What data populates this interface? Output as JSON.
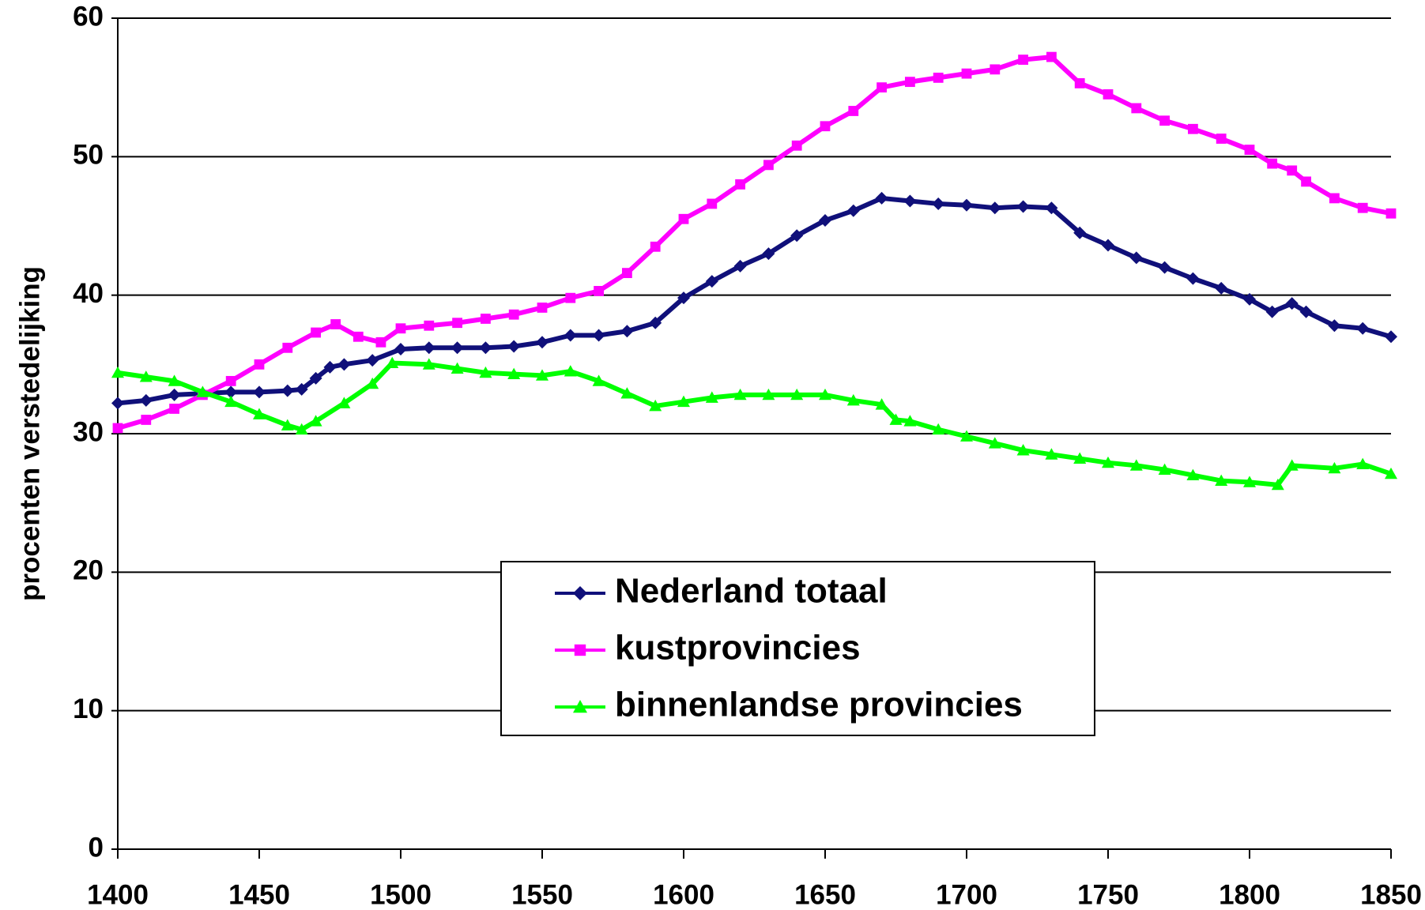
{
  "chart_data": {
    "type": "line",
    "y_label": "procenten verstedelijking",
    "xlim": [
      1400,
      1850
    ],
    "xticks": [
      1400,
      1450,
      1500,
      1550,
      1600,
      1650,
      1700,
      1750,
      1800,
      1850
    ],
    "ylim": [
      0,
      60
    ],
    "yticks": [
      0,
      10,
      20,
      30,
      40,
      50,
      60
    ],
    "grid": true,
    "series": [
      {
        "name": "Nederland totaal",
        "color": "#10107a",
        "marker": "diamond",
        "x": [
          1400,
          1410,
          1420,
          1430,
          1440,
          1450,
          1460,
          1465,
          1470,
          1475,
          1480,
          1490,
          1500,
          1510,
          1520,
          1530,
          1540,
          1550,
          1560,
          1570,
          1580,
          1590,
          1600,
          1610,
          1620,
          1630,
          1640,
          1650,
          1660,
          1670,
          1680,
          1690,
          1700,
          1710,
          1720,
          1730,
          1740,
          1750,
          1760,
          1770,
          1780,
          1790,
          1800,
          1808,
          1815,
          1820,
          1830,
          1840,
          1850
        ],
        "values": [
          32.2,
          32.4,
          32.8,
          32.9,
          33.0,
          33.0,
          33.1,
          33.2,
          34.0,
          34.8,
          35.0,
          35.3,
          36.1,
          36.2,
          36.2,
          36.2,
          36.3,
          36.6,
          37.1,
          37.1,
          37.4,
          38.0,
          39.8,
          41.0,
          42.1,
          43.0,
          44.3,
          45.4,
          46.1,
          47.0,
          46.8,
          46.6,
          46.5,
          46.3,
          46.4,
          46.3,
          44.5,
          43.6,
          42.7,
          42.0,
          41.2,
          40.5,
          39.7,
          38.8,
          39.4,
          38.8,
          37.8,
          37.6,
          37.0
        ]
      },
      {
        "name": "kustprovincies",
        "color": "#ff00ff",
        "marker": "square",
        "x": [
          1400,
          1410,
          1420,
          1430,
          1440,
          1450,
          1460,
          1470,
          1477,
          1485,
          1493,
          1500,
          1510,
          1520,
          1530,
          1540,
          1550,
          1560,
          1570,
          1580,
          1590,
          1600,
          1610,
          1620,
          1630,
          1640,
          1650,
          1660,
          1670,
          1680,
          1690,
          1700,
          1710,
          1720,
          1730,
          1740,
          1750,
          1760,
          1770,
          1780,
          1790,
          1800,
          1808,
          1815,
          1820,
          1830,
          1840,
          1850
        ],
        "values": [
          30.4,
          31.0,
          31.8,
          32.8,
          33.8,
          35.0,
          36.2,
          37.3,
          37.9,
          37.0,
          36.6,
          37.6,
          37.8,
          38.0,
          38.3,
          38.6,
          39.1,
          39.8,
          40.3,
          41.6,
          43.5,
          45.5,
          46.6,
          48.0,
          49.4,
          50.8,
          52.2,
          53.3,
          55.0,
          55.4,
          55.7,
          56.0,
          56.3,
          57.0,
          57.2,
          55.3,
          54.5,
          53.5,
          52.6,
          52.0,
          51.3,
          50.5,
          49.5,
          49.0,
          48.2,
          47.0,
          46.3,
          45.9
        ]
      },
      {
        "name": "binnenlandse provincies",
        "color": "#00ff00",
        "marker": "triangle",
        "x": [
          1400,
          1410,
          1420,
          1430,
          1440,
          1450,
          1460,
          1465,
          1470,
          1480,
          1490,
          1497,
          1510,
          1520,
          1530,
          1540,
          1550,
          1560,
          1570,
          1580,
          1590,
          1600,
          1610,
          1620,
          1630,
          1640,
          1650,
          1660,
          1670,
          1675,
          1680,
          1690,
          1700,
          1710,
          1720,
          1730,
          1740,
          1750,
          1760,
          1770,
          1780,
          1790,
          1800,
          1810,
          1815,
          1830,
          1840,
          1850
        ],
        "values": [
          34.4,
          34.1,
          33.8,
          33.0,
          32.3,
          31.4,
          30.6,
          30.3,
          30.9,
          32.2,
          33.6,
          35.1,
          35.0,
          34.7,
          34.4,
          34.3,
          34.2,
          34.5,
          33.8,
          32.9,
          32.0,
          32.3,
          32.6,
          32.8,
          32.8,
          32.8,
          32.8,
          32.4,
          32.1,
          31.0,
          30.9,
          30.3,
          29.8,
          29.3,
          28.8,
          28.5,
          28.2,
          27.9,
          27.7,
          27.4,
          27.0,
          26.6,
          26.5,
          26.3,
          27.7,
          27.5,
          27.8,
          27.1
        ]
      }
    ]
  }
}
